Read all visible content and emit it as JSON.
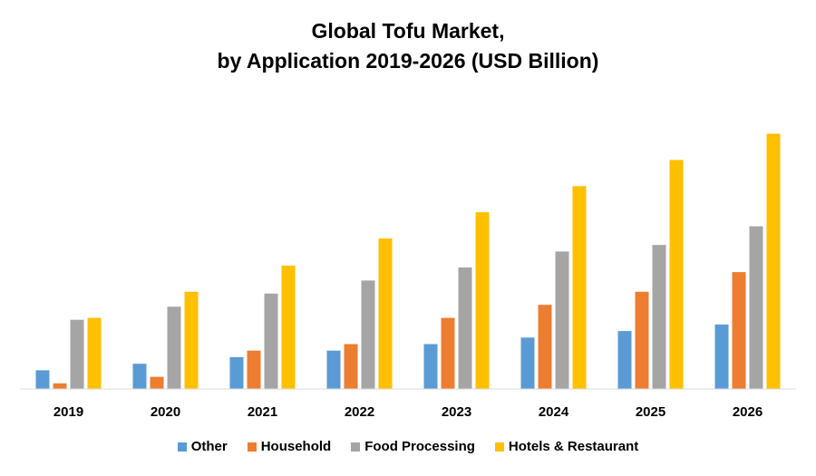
{
  "chart_data": {
    "type": "bar",
    "title": "Global Tofu Market,",
    "subtitle": "by Application 2019-2026 (USD Billion)",
    "categories": [
      "2019",
      "2020",
      "2021",
      "2022",
      "2023",
      "2024",
      "2025",
      "2026"
    ],
    "series": [
      {
        "name": "Other",
        "color": "#5B9BD5",
        "values": [
          20,
          27,
          34,
          41,
          48,
          55,
          62,
          69
        ]
      },
      {
        "name": "Household",
        "color": "#ED7D31",
        "values": [
          6,
          13,
          41,
          48,
          76,
          90,
          104,
          125
        ]
      },
      {
        "name": "Food Processing",
        "color": "#A5A5A5",
        "values": [
          74,
          88,
          102,
          116,
          130,
          147,
          154,
          174
        ]
      },
      {
        "name": "Hotels & Restaurant",
        "color": "#FFC000",
        "values": [
          76,
          104,
          132,
          161,
          189,
          217,
          245,
          273
        ]
      }
    ],
    "ylim": [
      0,
      290
    ],
    "grid": false,
    "legend_position": "bottom"
  }
}
